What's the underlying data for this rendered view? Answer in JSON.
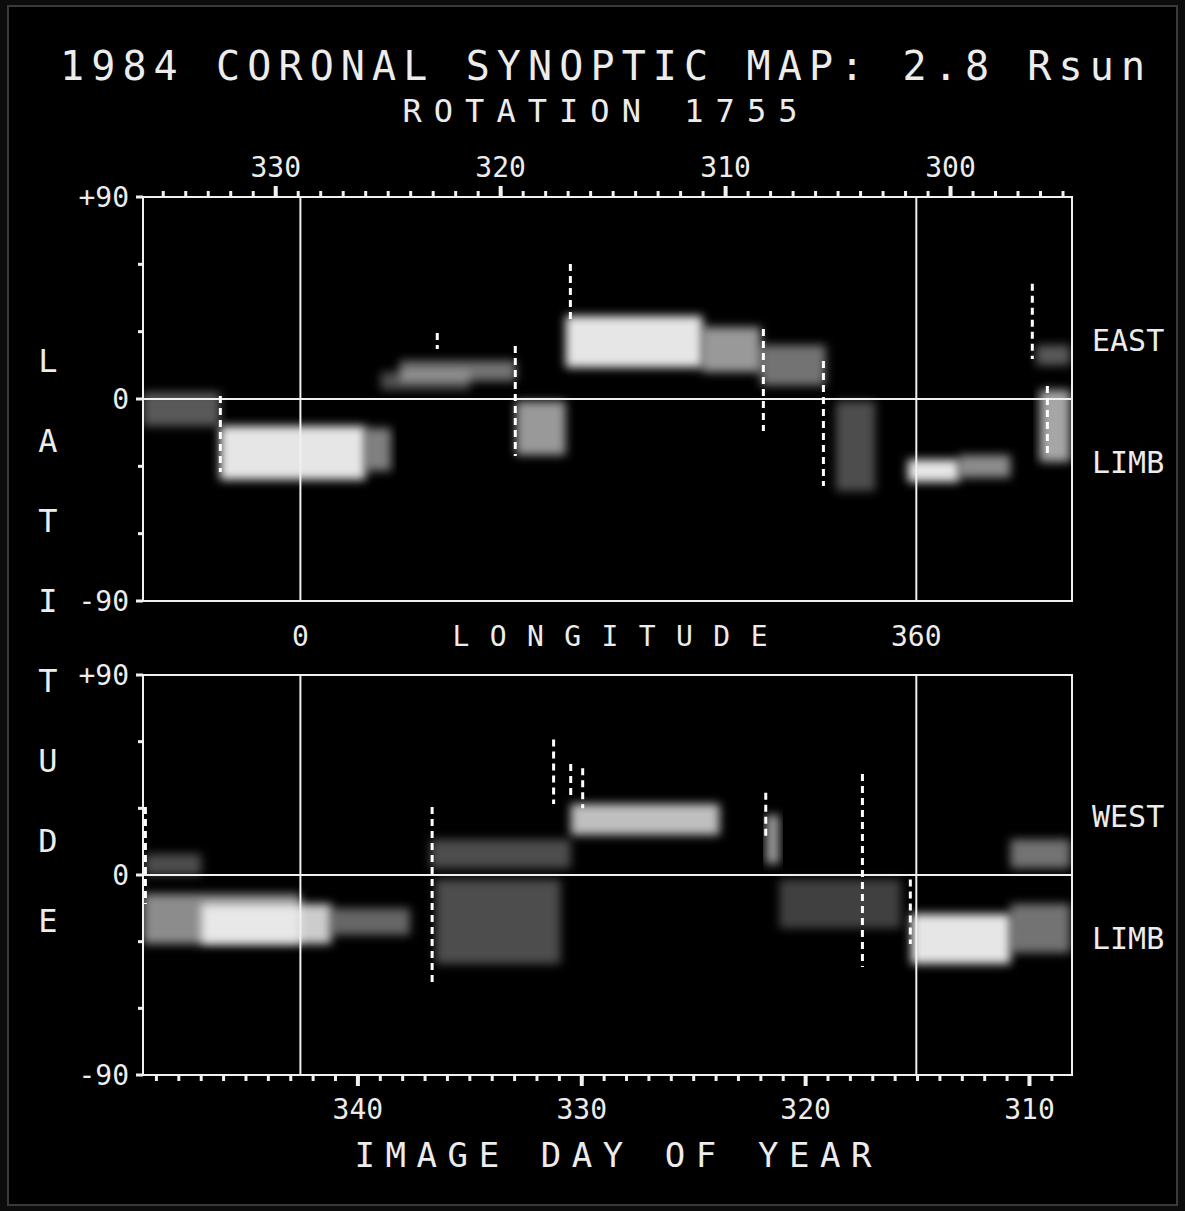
{
  "chart_data": {
    "type": "synoptic_map",
    "title": "1984 CORONAL SYNOPTIC MAP: 2.8 Rsun",
    "subtitle": "ROTATION 1755",
    "x_label": "LONGITUDE",
    "x2_label": "IMAGE DAY OF YEAR",
    "y_label": "LATITUDE",
    "xlim": [
      -92,
      451
    ],
    "xticks": [
      0,
      360
    ],
    "ylim": [
      -90,
      90
    ],
    "yticks": [
      {
        "value": 90,
        "label": "+90"
      },
      0,
      -90
    ],
    "yminor": [
      60,
      30,
      -30,
      -60
    ],
    "grid": true,
    "panels": [
      {
        "name": "EAST LIMB",
        "day_lim": [
          335.9,
          294.6
        ],
        "day_ticks": [
          330,
          320,
          310,
          300
        ],
        "day_minor_ticks": [
          295,
          296,
          297,
          298,
          299,
          300,
          301,
          302,
          303,
          304,
          305,
          306,
          307,
          308,
          309,
          310,
          311,
          312,
          313,
          314,
          315,
          316,
          317,
          318,
          319,
          320,
          321,
          322,
          323,
          324,
          325,
          326,
          327,
          328,
          329,
          330,
          331,
          332,
          333,
          334,
          335
        ],
        "features": [
          {
            "lon": [
              -92,
              -47
            ],
            "lat": [
              3,
              -12
            ],
            "brightness": 0.35
          },
          {
            "lon": [
              -47,
              38
            ],
            "lat": [
              -12,
              -36
            ],
            "brightness": 0.9
          },
          {
            "lon": [
              38,
              53
            ],
            "lat": [
              -13,
              -32
            ],
            "brightness": 0.5
          },
          {
            "lon": [
              47,
              99
            ],
            "lat": [
              12,
              4
            ],
            "brightness": 0.3
          },
          {
            "lon": [
              58,
              126
            ],
            "lat": [
              17,
              8
            ],
            "brightness": 0.45
          },
          {
            "lon": [
              126,
              155
            ],
            "lat": [
              -1,
              -25
            ],
            "brightness": 0.6
          },
          {
            "lon": [
              155,
              235
            ],
            "lat": [
              37,
              14
            ],
            "brightness": 0.9
          },
          {
            "lon": [
              235,
              269
            ],
            "lat": [
              32,
              12
            ],
            "brightness": 0.6
          },
          {
            "lon": [
              269,
              307
            ],
            "lat": [
              24,
              6
            ],
            "brightness": 0.45
          },
          {
            "lon": [
              313,
              336
            ],
            "lat": [
              -1,
              -41
            ],
            "brightness": 0.3
          },
          {
            "lon": [
              355,
              385
            ],
            "lat": [
              -27,
              -37
            ],
            "brightness": 0.9
          },
          {
            "lon": [
              385,
              415
            ],
            "lat": [
              -25,
              -35
            ],
            "brightness": 0.55
          },
          {
            "lon": [
              432,
              450
            ],
            "lat": [
              4,
              -28
            ],
            "brightness": 0.65
          },
          {
            "lon": [
              430,
              450
            ],
            "lat": [
              24,
              15
            ],
            "brightness": 0.35
          }
        ],
        "dashes": [
          {
            "lon": -46.8,
            "lat": [
              1.3,
              -32.5
            ]
          },
          {
            "lon": 80,
            "lat": [
              29.4,
              22.3
            ]
          },
          {
            "lon": 125.6,
            "lat": [
              23.6,
              -25.4
            ]
          },
          {
            "lon": 157.8,
            "lat": [
              60.1,
              34.7
            ]
          },
          {
            "lon": 270.6,
            "lat": [
              31.2,
              -14.3
            ]
          },
          {
            "lon": 305.7,
            "lat": [
              16.9,
              -38.8
            ]
          },
          {
            "lon": 427.8,
            "lat": [
              51.3,
              17.8
            ]
          },
          {
            "lon": 436.6,
            "lat": [
              5.8,
              -25.4
            ]
          }
        ]
      },
      {
        "name": "WEST LIMB",
        "day_lim": [
          349.6,
          308.1
        ],
        "day_ticks": [
          340,
          330,
          320,
          310
        ],
        "day_minor_ticks": [
          309,
          310,
          311,
          312,
          313,
          314,
          315,
          316,
          317,
          318,
          319,
          320,
          321,
          322,
          323,
          324,
          325,
          326,
          327,
          328,
          329,
          330,
          331,
          332,
          333,
          334,
          335,
          336,
          337,
          338,
          339,
          340,
          341,
          342,
          343,
          344,
          345,
          346,
          347,
          348,
          349
        ],
        "features": [
          {
            "lon": [
              -92,
              0
            ],
            "lat": [
              -8.5,
              -31
            ],
            "brightness": 0.55
          },
          {
            "lon": [
              -58,
              18
            ],
            "lat": [
              -13,
              -31
            ],
            "brightness": 0.8
          },
          {
            "lon": [
              18,
              64
            ],
            "lat": [
              -15,
              -27
            ],
            "brightness": 0.4
          },
          {
            "lon": [
              -91,
              -58
            ],
            "lat": [
              9.5,
              0
            ],
            "brightness": 0.3
          },
          {
            "lon": [
              79,
              152
            ],
            "lat": [
              -2,
              -40
            ],
            "brightness": 0.3
          },
          {
            "lon": [
              76,
              158
            ],
            "lat": [
              16,
              3
            ],
            "brightness": 0.3
          },
          {
            "lon": [
              158,
              245
            ],
            "lat": [
              32,
              18
            ],
            "brightness": 0.75
          },
          {
            "lon": [
              272,
              280
            ],
            "lat": [
              27,
              5
            ],
            "brightness": 0.6
          },
          {
            "lon": [
              280,
              351
            ],
            "lat": [
              -2,
              -24
            ],
            "brightness": 0.25
          },
          {
            "lon": [
              357,
              415
            ],
            "lat": [
              -17.5,
              -40
            ],
            "brightness": 0.9
          },
          {
            "lon": [
              415,
              450
            ],
            "lat": [
              -13,
              -35
            ],
            "brightness": 0.45
          },
          {
            "lon": [
              415,
              450
            ],
            "lat": [
              16,
              3
            ],
            "brightness": 0.45
          }
        ],
        "dashes": [
          {
            "lon": -90.6,
            "lat": [
              30.6,
              -13
            ]
          },
          {
            "lon": 77,
            "lat": [
              30.6,
              -49
            ]
          },
          {
            "lon": 148,
            "lat": [
              61,
              32
            ]
          },
          {
            "lon": 158,
            "lat": [
              50,
              34
            ]
          },
          {
            "lon": 165,
            "lat": [
              48,
              30
            ]
          },
          {
            "lon": 272,
            "lat": [
              37,
              16
            ]
          },
          {
            "lon": 328.5,
            "lat": [
              45.5,
              -41.4
            ]
          },
          {
            "lon": 356.5,
            "lat": [
              -2,
              -31
            ]
          }
        ]
      }
    ]
  }
}
